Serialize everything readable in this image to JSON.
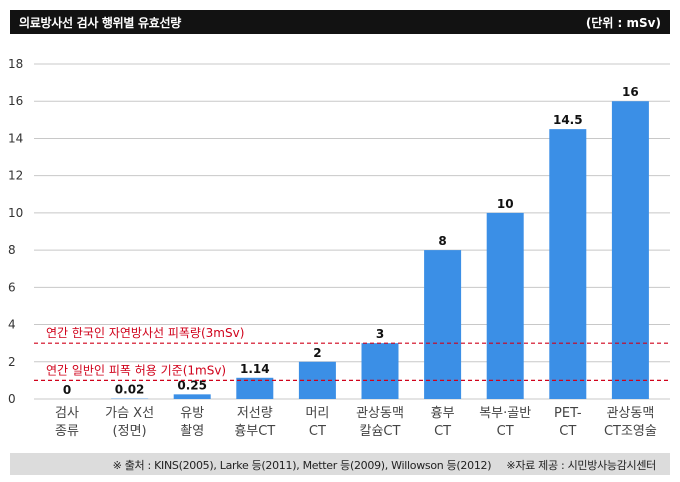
{
  "header": {
    "title": "의료방사선 검사 행위별 유효선량",
    "unit": "(단위 : mSv)"
  },
  "footer": {
    "source": "※ 출처 : KINS(2005), Larke 등(2011), Metter 등(2009), Willowson 등(2012)",
    "provider": "※자료 제공 : 시민방사능감시센터"
  },
  "colors": {
    "bar": "#3b8fe6",
    "reference_line": "#d0021b",
    "grid": "#c8c8c8"
  },
  "chart_data": {
    "type": "bar",
    "ylim": [
      0,
      18
    ],
    "yticks": [
      0,
      2,
      4,
      6,
      8,
      10,
      12,
      14,
      16,
      18
    ],
    "grid": true,
    "categories": [
      [
        "검사",
        "종류"
      ],
      [
        "가슴 X선",
        "(정면)"
      ],
      [
        "유방",
        "촬영"
      ],
      [
        "저선량",
        "흉부CT"
      ],
      [
        "머리",
        "CT"
      ],
      [
        "관상동맥",
        "칼슘CT"
      ],
      [
        "흉부",
        "CT"
      ],
      [
        "복부·골반",
        "CT"
      ],
      [
        "PET-",
        "CT"
      ],
      [
        "관상동맥",
        "CT조영술"
      ]
    ],
    "values": [
      0,
      0.02,
      0.25,
      1.14,
      2,
      3,
      8,
      10,
      14.5,
      16
    ],
    "value_labels": [
      "0",
      "0.02",
      "0.25",
      "1.14",
      "2",
      "3",
      "8",
      "10",
      "14.5",
      "16"
    ],
    "reference_lines": [
      {
        "label": "연간 한국인 자연방사선 피폭량(3mSv)",
        "value": 3
      },
      {
        "label": "연간 일반인 피폭 허용 기준(1mSv)",
        "value": 1
      }
    ]
  }
}
